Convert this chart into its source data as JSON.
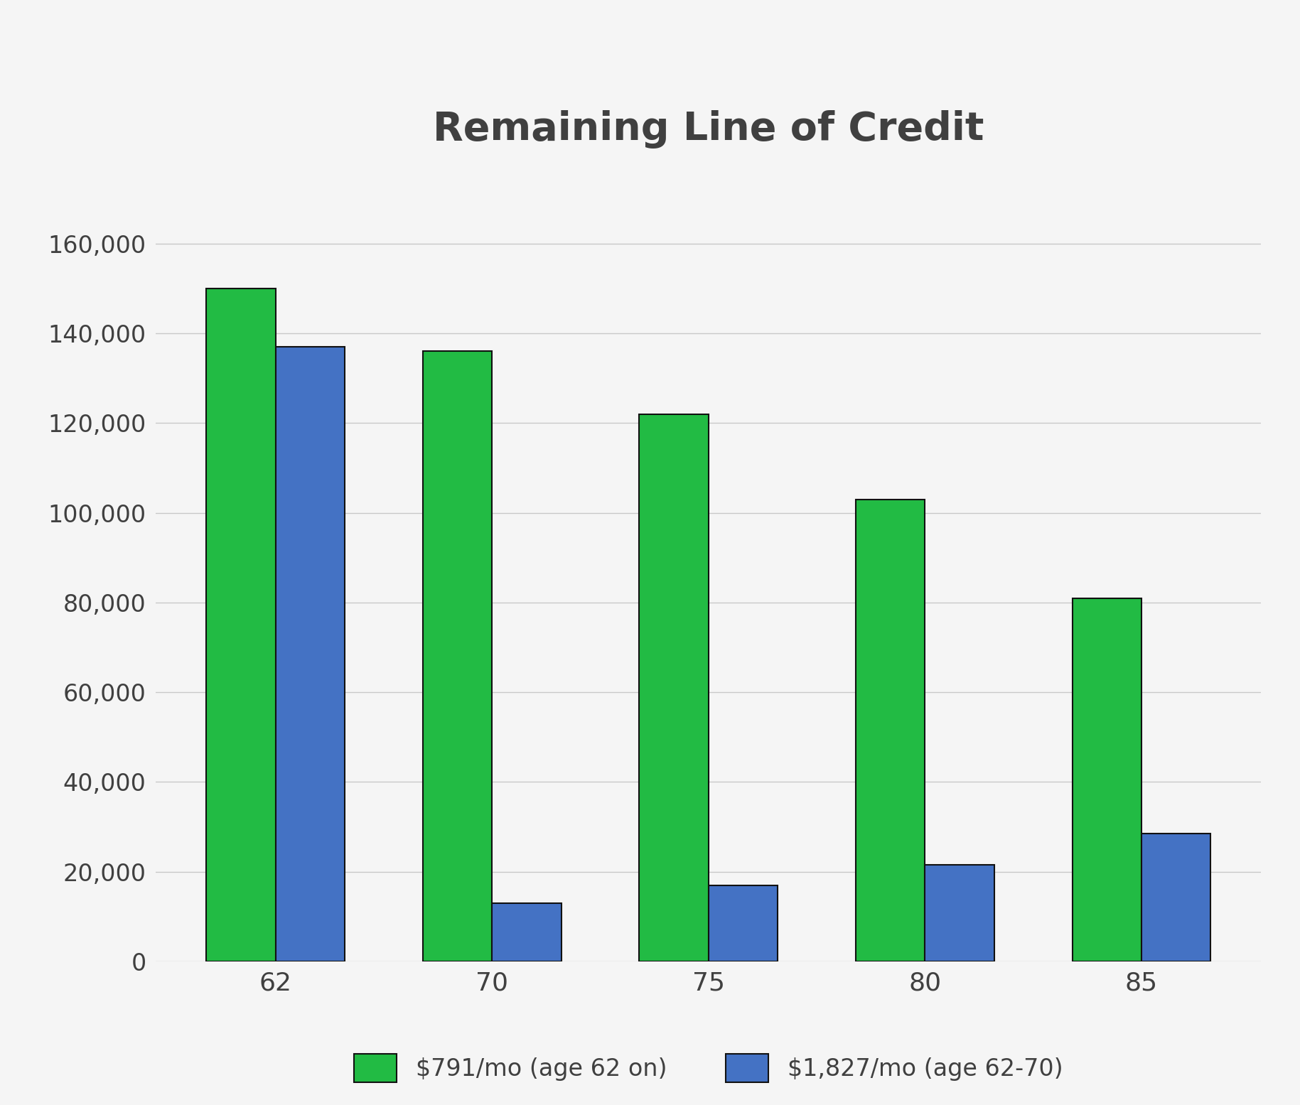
{
  "title": "Remaining Line of Credit",
  "categories": [
    62,
    70,
    75,
    80,
    85
  ],
  "series": [
    {
      "label": "$791/mo (age 62 on)",
      "color": "#22BB44",
      "edgecolor": "#111111",
      "values": [
        150000,
        136000,
        122000,
        103000,
        81000
      ]
    },
    {
      "label": "$1,827/mo (age 62-70)",
      "color": "#4472C4",
      "edgecolor": "#111111",
      "values": [
        137000,
        13000,
        17000,
        21500,
        28500
      ]
    }
  ],
  "ylim": [
    0,
    170000
  ],
  "yticks": [
    0,
    20000,
    40000,
    60000,
    80000,
    100000,
    120000,
    140000,
    160000
  ],
  "ytick_labels": [
    "0",
    "20,000",
    "40,000",
    "60,000",
    "80,000",
    "100,000",
    "120,000",
    "140,000",
    "160,000"
  ],
  "background_color": "#f5f5f5",
  "plot_background_color": "#f5f5f5",
  "title_color": "#404040",
  "title_fontsize": 40,
  "tick_fontsize": 24,
  "legend_fontsize": 24,
  "bar_width": 0.32,
  "grid_color": "#c8c8c8",
  "grid_linewidth": 1.0
}
